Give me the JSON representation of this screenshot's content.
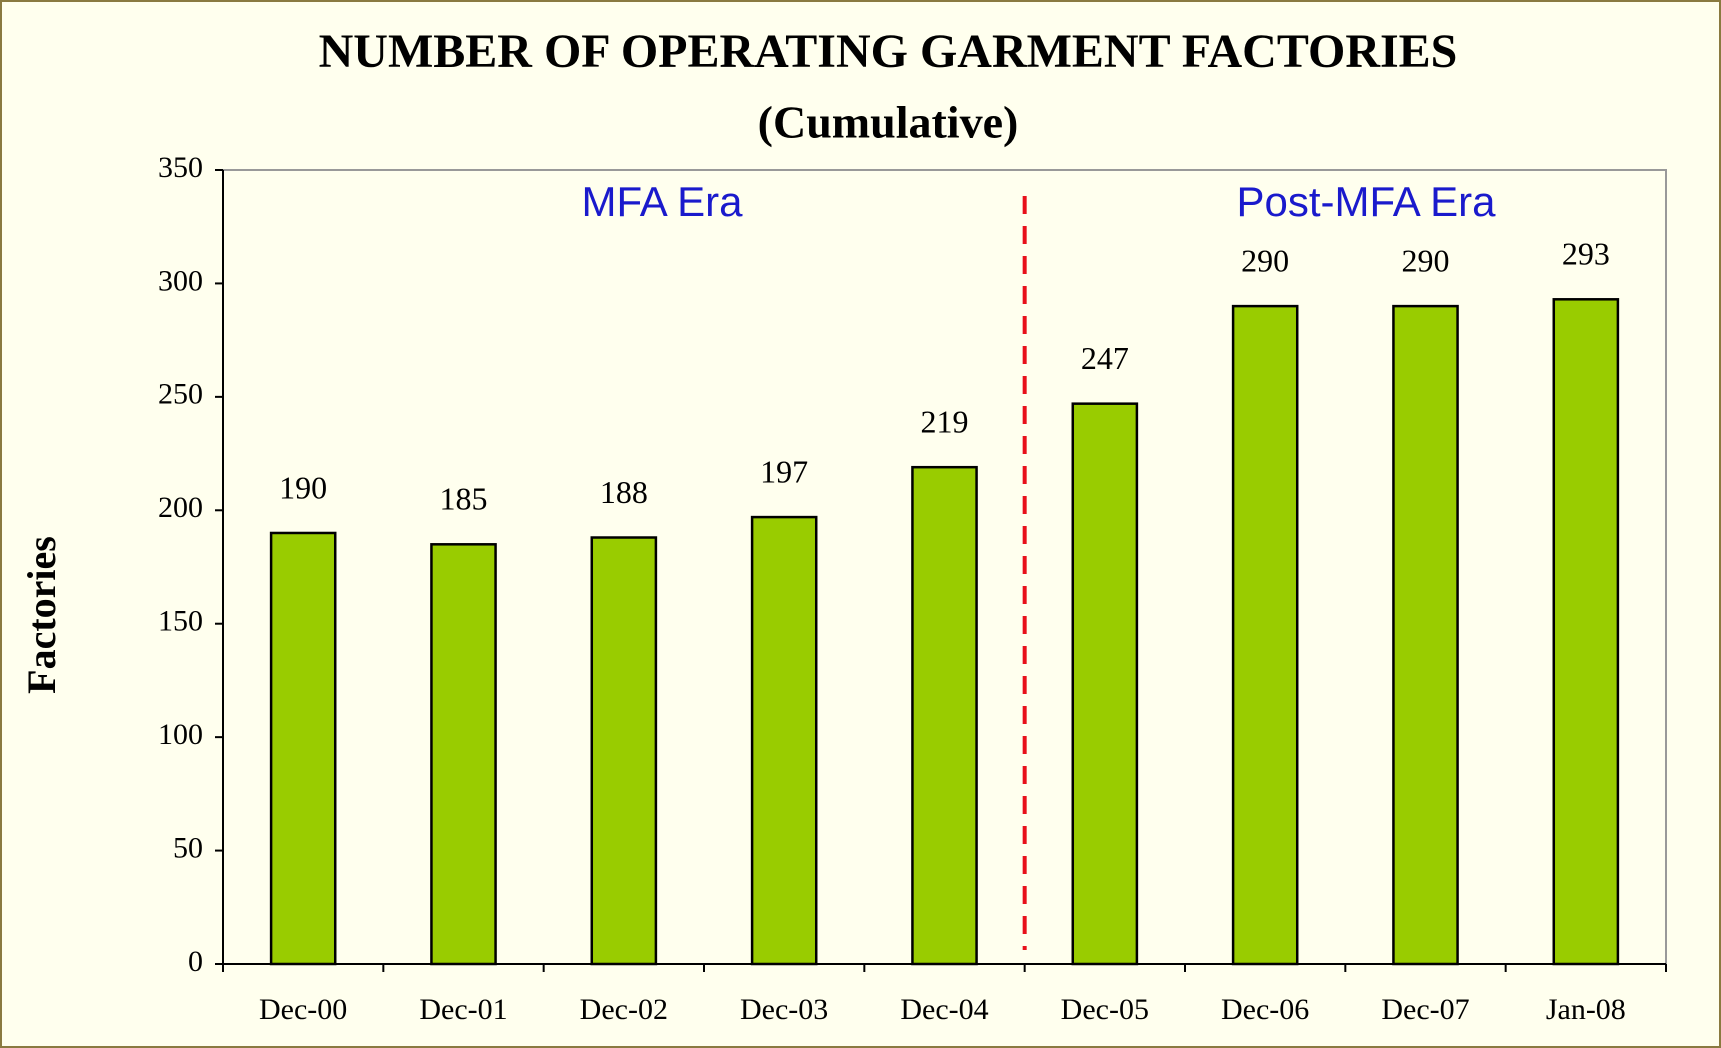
{
  "chart_data": {
    "type": "bar",
    "title": "NUMBER OF OPERATING GARMENT FACTORIES",
    "subtitle": "(Cumulative)",
    "y_label": "Factories",
    "annotations": [
      "MFA Era",
      "Post-MFA Era"
    ],
    "categories": [
      "Dec-00",
      "Dec-01",
      "Dec-02",
      "Dec-03",
      "Dec-04",
      "Dec-05",
      "Dec-06",
      "Dec-07",
      "Jan-08"
    ],
    "values": [
      190,
      185,
      188,
      197,
      219,
      247,
      290,
      290,
      293
    ],
    "color": "#99cc00",
    "ylim": [
      0,
      350
    ],
    "yticks": [
      0,
      50,
      100,
      150,
      200,
      250,
      300,
      350
    ],
    "grid": false
  }
}
